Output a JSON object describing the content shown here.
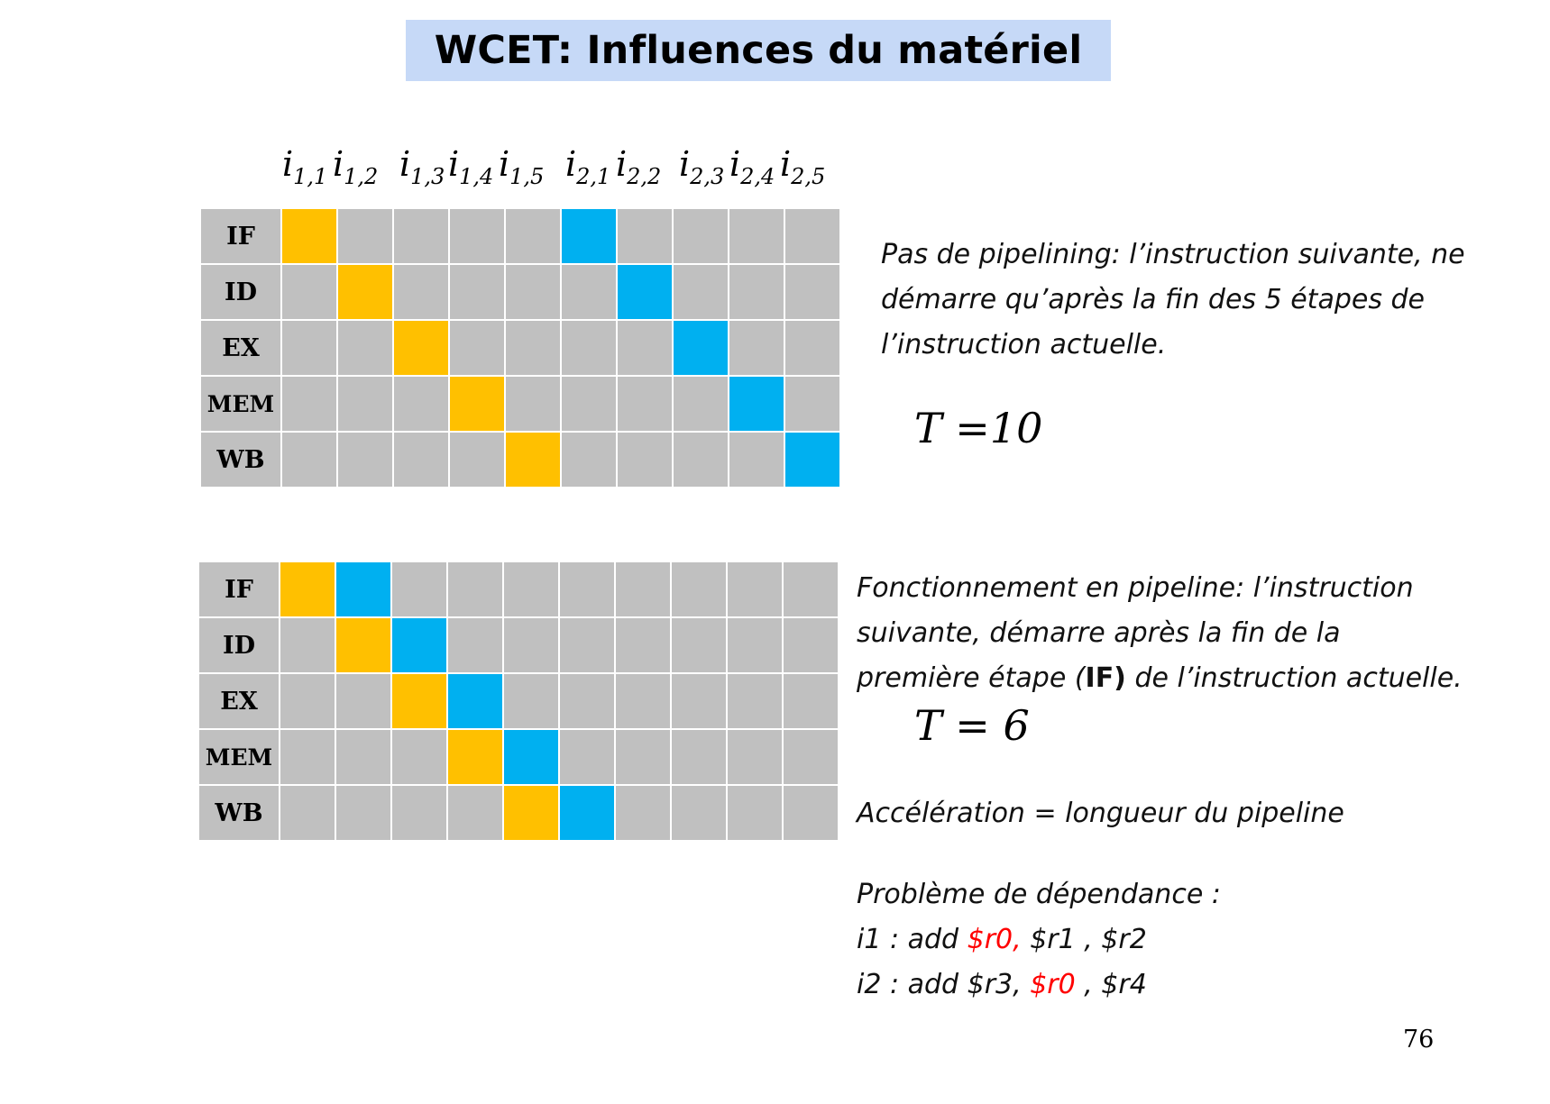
{
  "title": "WCET: Influences du matériel",
  "column_labels": [
    {
      "base": "i",
      "sub": "1,1"
    },
    {
      "base": "i",
      "sub": "1,2"
    },
    {
      "base": "i",
      "sub": "1,3"
    },
    {
      "base": "i",
      "sub": "1,4"
    },
    {
      "base": "i",
      "sub": "1,5"
    },
    {
      "base": "i",
      "sub": "2,1"
    },
    {
      "base": "i",
      "sub": "2,2"
    },
    {
      "base": "i",
      "sub": "2,3"
    },
    {
      "base": "i",
      "sub": "2,4"
    },
    {
      "base": "i",
      "sub": "2,5"
    }
  ],
  "stages": [
    "IF",
    "ID",
    "EX",
    "MEM",
    "WB"
  ],
  "colors": {
    "instruction_1": "#ffc000",
    "instruction_2": "#00b0f0",
    "empty": "#c0c0c0",
    "title_bg": "#c6d9f7"
  },
  "diagram_no_pipeline": {
    "cycles": 10,
    "occupancy": [
      [
        1,
        0,
        0,
        0,
        0,
        2,
        0,
        0,
        0,
        0
      ],
      [
        0,
        1,
        0,
        0,
        0,
        0,
        2,
        0,
        0,
        0
      ],
      [
        0,
        0,
        1,
        0,
        0,
        0,
        0,
        2,
        0,
        0
      ],
      [
        0,
        0,
        0,
        1,
        0,
        0,
        0,
        0,
        2,
        0
      ],
      [
        0,
        0,
        0,
        0,
        1,
        0,
        0,
        0,
        0,
        2
      ]
    ]
  },
  "diagram_pipeline": {
    "cycles": 10,
    "occupancy": [
      [
        1,
        2,
        0,
        0,
        0,
        0,
        0,
        0,
        0,
        0
      ],
      [
        0,
        1,
        2,
        0,
        0,
        0,
        0,
        0,
        0,
        0
      ],
      [
        0,
        0,
        1,
        2,
        0,
        0,
        0,
        0,
        0,
        0
      ],
      [
        0,
        0,
        0,
        1,
        2,
        0,
        0,
        0,
        0,
        0
      ],
      [
        0,
        0,
        0,
        0,
        1,
        2,
        0,
        0,
        0,
        0
      ]
    ]
  },
  "text_no_pipeline": {
    "line1": "Pas de pipelining: l’instruction suivante, ne",
    "line2": "démarre qu’après la fin des 5 étapes de",
    "line3": "l’instruction actuelle.",
    "t_value": "T =10"
  },
  "text_pipeline": {
    "line1": "Fonctionnement en pipeline: l’instruction",
    "line2": "suivante,  démarre après la fin de la",
    "line3_pre": "première étape (",
    "line3_bold": "IF)",
    "line3_post": " de l’instruction actuelle.",
    "t_value": "T = 6",
    "acceleration": "Accélération = longueur du pipeline"
  },
  "dependency": {
    "heading": "Problème de dépendance :",
    "i1_pre": "i1 : add  ",
    "i1_red": "$r0,",
    "i1_post": " $r1 , $r2",
    "i2_pre": "i2 : add  $r3, ",
    "i2_red": "$r0",
    "i2_post": " , $r4"
  },
  "page_number": "76"
}
